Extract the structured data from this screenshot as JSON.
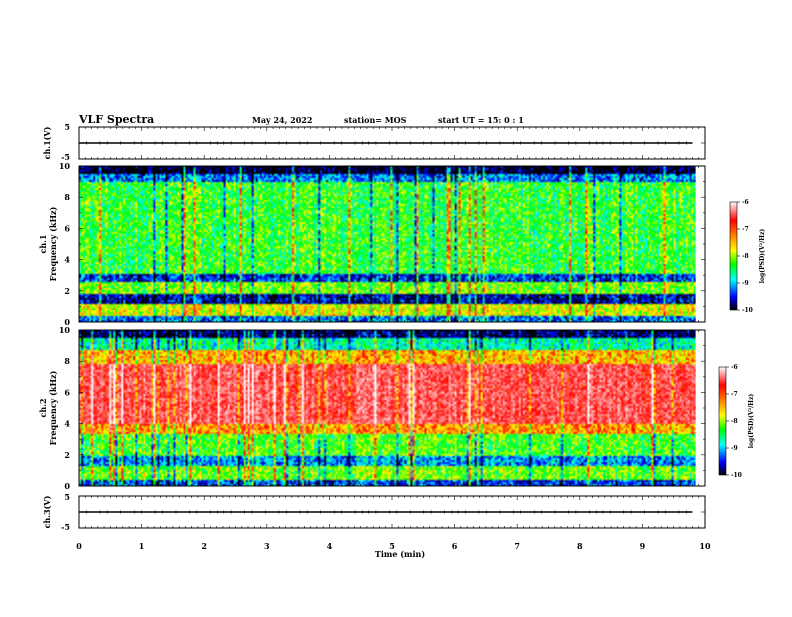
{
  "header": {
    "title": "VLF Spectra",
    "date": "May 24, 2022",
    "station": "station= MOS",
    "start": "start UT =  15: 0  : 1"
  },
  "colorbar": {
    "label": "log(PSD)(V²/Hz)",
    "ticks": [
      "-6",
      "-7",
      "-8",
      "-9",
      "-10"
    ],
    "colors": [
      "#ffffff",
      "#ff0000",
      "#ffff00",
      "#00ff00",
      "#00ffff",
      "#0000ff",
      "#000000"
    ]
  },
  "chart_data": [
    {
      "type": "line",
      "panel": "ch1-waveform",
      "ylabel": "ch.1(V)",
      "ylim": [
        -5,
        5
      ],
      "yticks": [
        "5",
        "-5"
      ],
      "xlim": [
        0,
        10
      ],
      "series": [
        {
          "x": [
            0,
            9.8
          ],
          "values": [
            0,
            0
          ]
        }
      ]
    },
    {
      "type": "heatmap",
      "panel": "ch1-spectrogram",
      "ylabel_top": "ch.1",
      "ylabel": "Frequency (kHz)",
      "ylim": [
        0,
        10
      ],
      "yticks": [
        "0",
        "2",
        "4",
        "6",
        "8",
        "10"
      ],
      "xlim": [
        0,
        10
      ],
      "data_extent_min": 9.85,
      "zlim": [
        -10,
        -6
      ],
      "bands": [
        {
          "f": [
            0,
            0.3
          ],
          "z": -9.3
        },
        {
          "f": [
            0.3,
            1.1
          ],
          "z": -8.0
        },
        {
          "f": [
            1.1,
            1.7
          ],
          "z": -9.7
        },
        {
          "f": [
            1.7,
            2.5
          ],
          "z": -8.3
        },
        {
          "f": [
            2.5,
            3.1
          ],
          "z": -9.5
        },
        {
          "f": [
            3.1,
            9.0
          ],
          "z": -8.5
        },
        {
          "f": [
            9.0,
            9.5
          ],
          "z": -9.3
        },
        {
          "f": [
            9.5,
            10
          ],
          "z": -10.0
        }
      ]
    },
    {
      "type": "heatmap",
      "panel": "ch2-spectrogram",
      "ylabel_top": "ch.2",
      "ylabel": "Frequency (kHz)",
      "ylim": [
        0,
        10
      ],
      "yticks": [
        "0",
        "2",
        "4",
        "6",
        "8",
        "10"
      ],
      "xlim": [
        0,
        10
      ],
      "data_extent_min": 9.85,
      "zlim": [
        -10,
        -6
      ],
      "bands": [
        {
          "f": [
            0,
            0.3
          ],
          "z": -9.4
        },
        {
          "f": [
            0.3,
            1.2
          ],
          "z": -8.3
        },
        {
          "f": [
            1.2,
            1.9
          ],
          "z": -9.2
        },
        {
          "f": [
            1.9,
            3.3
          ],
          "z": -8.4
        },
        {
          "f": [
            3.3,
            4.0
          ],
          "z": -7.6
        },
        {
          "f": [
            4.0,
            7.9
          ],
          "z": -6.8
        },
        {
          "f": [
            7.9,
            8.8
          ],
          "z": -7.7
        },
        {
          "f": [
            8.8,
            9.5
          ],
          "z": -8.8
        },
        {
          "f": [
            9.5,
            10
          ],
          "z": -9.8
        }
      ]
    },
    {
      "type": "line",
      "panel": "ch3-waveform",
      "ylabel": "ch.3(V)",
      "ylim": [
        -5,
        5
      ],
      "yticks": [
        "5",
        "-5"
      ],
      "xlim": [
        0,
        10
      ],
      "xlabel": "Time (min)",
      "xticks": [
        "0",
        "1",
        "2",
        "3",
        "4",
        "5",
        "6",
        "7",
        "8",
        "9",
        "10"
      ],
      "series": [
        {
          "x": [
            0,
            9.8
          ],
          "values": [
            0,
            0
          ]
        }
      ]
    }
  ]
}
